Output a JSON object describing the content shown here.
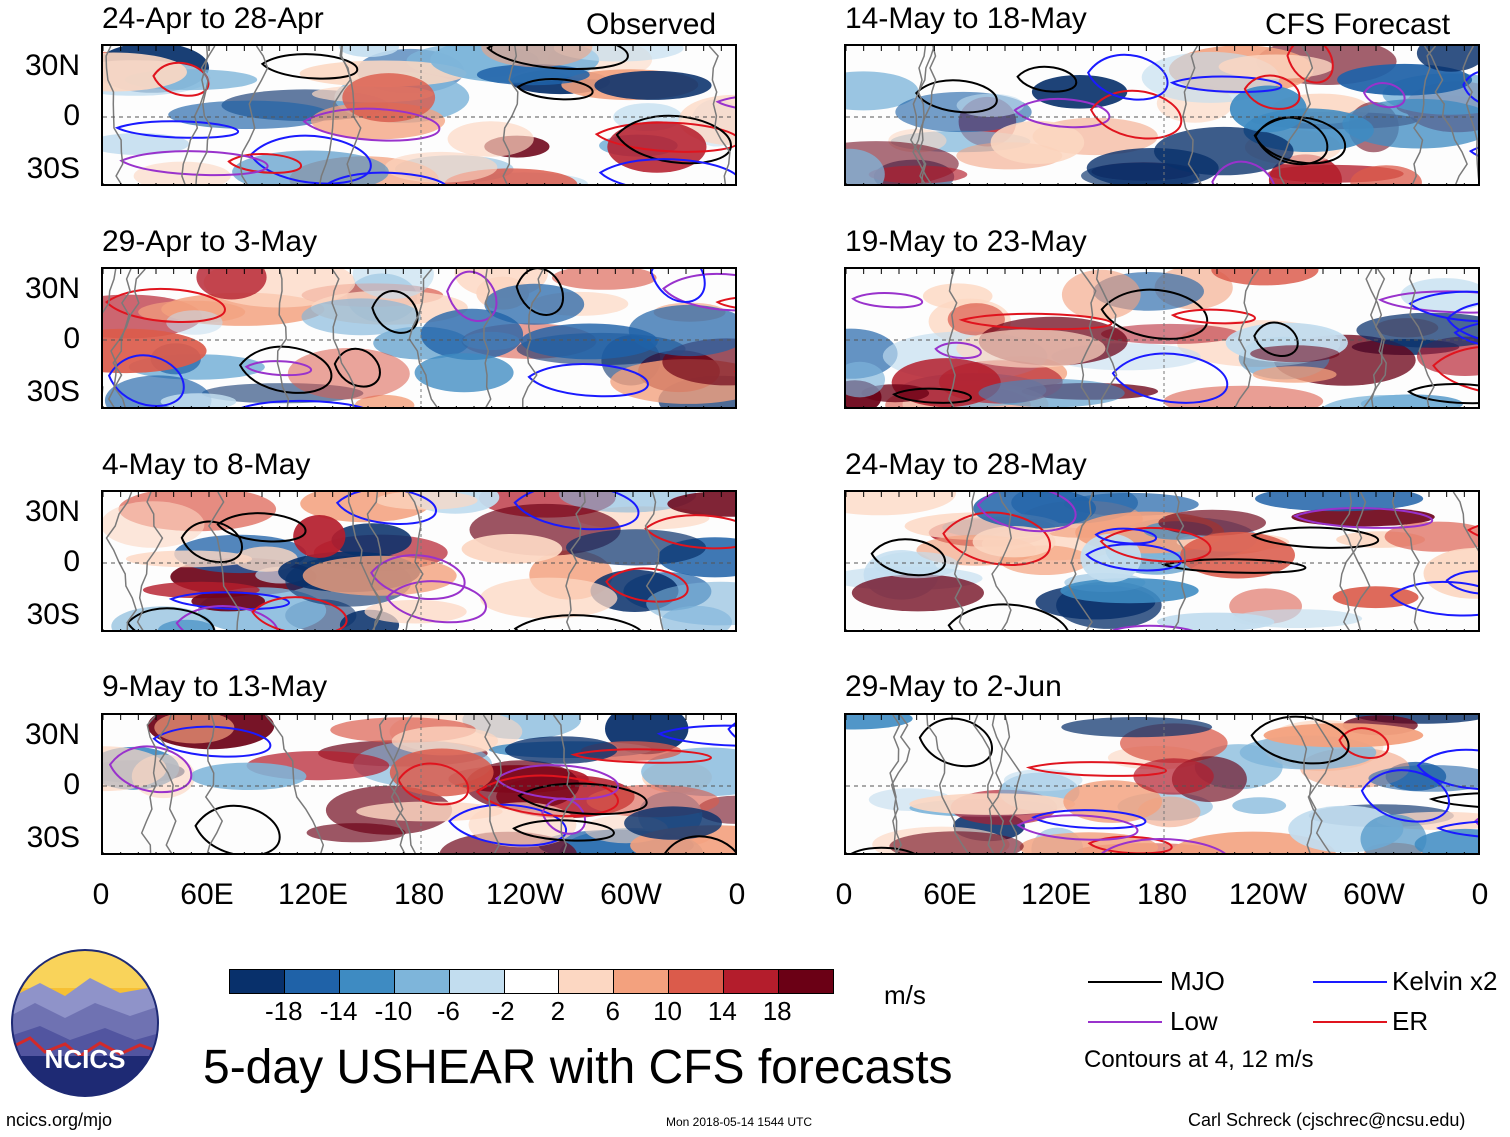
{
  "chart_data": {
    "type": "heatmap",
    "title": "5-day USHEAR with CFS forecasts",
    "units": "m/s",
    "colorbar_ticks": [
      "-18",
      "-14",
      "-10",
      "-6",
      "-2",
      "2",
      "6",
      "10",
      "14",
      "18"
    ],
    "colorbar_colors": [
      "#08306b",
      "#1f62a8",
      "#3e8bc2",
      "#7eb5da",
      "#c2ddef",
      "#ffffff",
      "#fcd7c2",
      "#f3a17e",
      "#db5b4b",
      "#b41d2c",
      "#6b0015"
    ],
    "x_ticks": [
      "0",
      "60E",
      "120E",
      "180",
      "120W",
      "60W",
      "0"
    ],
    "y_ticks": [
      "30N",
      "0",
      "30S"
    ],
    "columns": [
      {
        "label": "Observed",
        "periods": [
          "24-Apr to 28-Apr",
          "29-Apr to 3-May",
          "4-May to 8-May",
          "9-May to 13-May"
        ]
      },
      {
        "label": "CFS Forecast",
        "periods": [
          "14-May to 18-May",
          "19-May to 23-May",
          "24-May to 28-May",
          "29-May to 2-Jun"
        ]
      }
    ],
    "legend": [
      {
        "label": "MJO",
        "color": "#000000"
      },
      {
        "label": "Kelvin x2",
        "color": "#1a1aff"
      },
      {
        "label": "Low",
        "color": "#9932cc"
      },
      {
        "label": "ER",
        "color": "#e0141e"
      }
    ],
    "contour_note": "Contours at 4, 12 m/s"
  },
  "footer": {
    "logo_text": "NCICS",
    "left": "ncics.org/mjo",
    "center": "Mon 2018-05-14 1544 UTC",
    "right": "Carl Schreck (cjschrec@ncsu.edu)"
  }
}
